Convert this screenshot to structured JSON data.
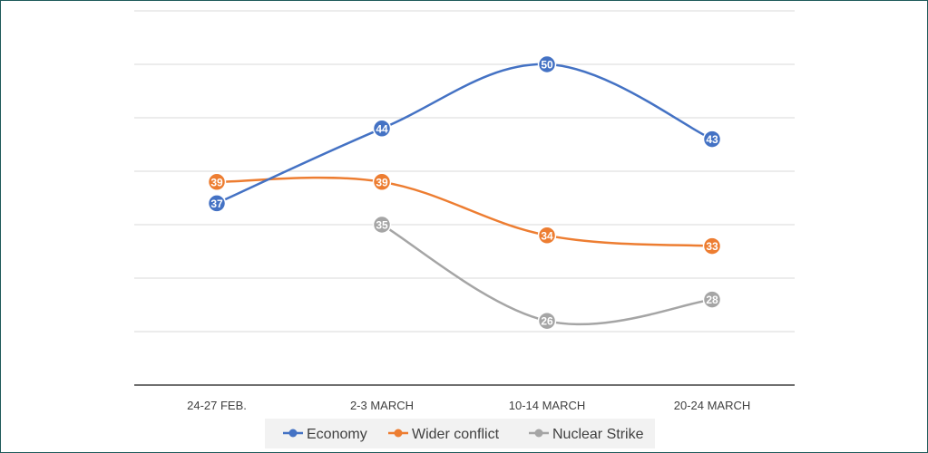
{
  "chart_data": {
    "type": "line",
    "categories": [
      "24-27 FEB.",
      "2-3 MARCH",
      "10-14 MARCH",
      "20-24 MARCH"
    ],
    "series": [
      {
        "name": "Economy",
        "values": [
          37,
          44,
          50,
          43
        ],
        "color": "#4472c4"
      },
      {
        "name": "Wider conflict",
        "values": [
          39,
          39,
          34,
          33
        ],
        "color": "#ed7d31"
      },
      {
        "name": "Nuclear Strike",
        "values": [
          null,
          35,
          26,
          28
        ],
        "color": "#a5a5a5"
      }
    ],
    "ylim": [
      20,
      55
    ],
    "grid": true,
    "legend": "bottom"
  }
}
